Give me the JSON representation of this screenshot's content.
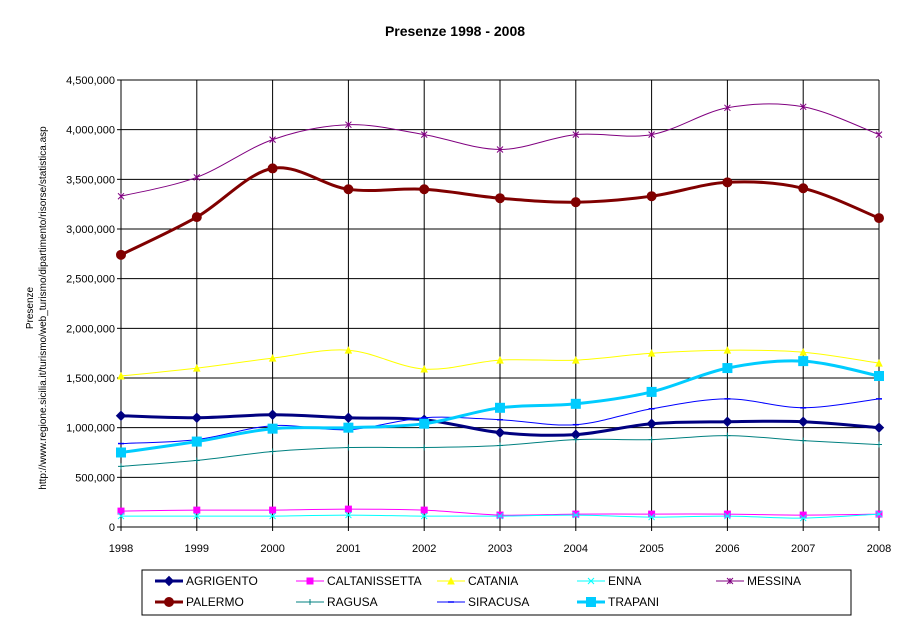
{
  "chart_data": {
    "type": "line",
    "title": "Presenze 1998 - 2008",
    "ylabel_line1": "Presenze",
    "ylabel_line2": "http://www.regione.sicilia.it/turismo/web_turismo/dipartimento/risorse/statistica.asp",
    "x": [
      "1998",
      "1999",
      "2000",
      "2001",
      "2002",
      "2003",
      "2004",
      "2005",
      "2006",
      "2007",
      "2008"
    ],
    "ylim": [
      0,
      4500000
    ],
    "yticks": [
      0,
      500000,
      1000000,
      1500000,
      2000000,
      2500000,
      3000000,
      3500000,
      4000000,
      4500000
    ],
    "ytick_labels": [
      "0",
      "500,000",
      "1,000,000",
      "1,500,000",
      "2,000,000",
      "2,500,000",
      "3,000,000",
      "3,500,000",
      "4,000,000",
      "4,500,000"
    ],
    "grid": "horizontal",
    "legend_position": "bottom",
    "series": [
      {
        "name": "AGRIGENTO",
        "color": "#000080",
        "marker": "diamond",
        "values": [
          1120000,
          1100000,
          1130000,
          1100000,
          1080000,
          950000,
          930000,
          1040000,
          1060000,
          1060000,
          1000000
        ]
      },
      {
        "name": "CALTANISSETTA",
        "color": "#ff00ff",
        "marker": "square",
        "values": [
          160000,
          170000,
          170000,
          180000,
          170000,
          120000,
          130000,
          130000,
          130000,
          120000,
          130000
        ]
      },
      {
        "name": "CATANIA",
        "color": "#ffff00",
        "marker": "triangle",
        "values": [
          1520000,
          1600000,
          1700000,
          1780000,
          1590000,
          1680000,
          1680000,
          1750000,
          1780000,
          1760000,
          1650000
        ]
      },
      {
        "name": "ENNA",
        "color": "#00ffff",
        "marker": "x",
        "values": [
          110000,
          110000,
          110000,
          120000,
          110000,
          110000,
          120000,
          100000,
          110000,
          90000,
          130000
        ]
      },
      {
        "name": "MESSINA",
        "color": "#800080",
        "marker": "star",
        "values": [
          3330000,
          3520000,
          3900000,
          4050000,
          3950000,
          3800000,
          3950000,
          3950000,
          4220000,
          4230000,
          3950000
        ]
      },
      {
        "name": "PALERMO",
        "color": "#800000",
        "marker": "circle",
        "values": [
          2740000,
          3120000,
          3610000,
          3400000,
          3400000,
          3310000,
          3270000,
          3330000,
          3470000,
          3410000,
          3110000
        ]
      },
      {
        "name": "RAGUSA",
        "color": "#008080",
        "marker": "plus",
        "values": [
          610000,
          670000,
          760000,
          800000,
          800000,
          820000,
          880000,
          880000,
          920000,
          870000,
          830000
        ]
      },
      {
        "name": "SIRACUSA",
        "color": "#0000ff",
        "marker": "dash",
        "values": [
          840000,
          880000,
          1020000,
          980000,
          1100000,
          1080000,
          1030000,
          1190000,
          1290000,
          1200000,
          1290000
        ]
      },
      {
        "name": "TRAPANI",
        "color": "#00ccff",
        "marker": "square",
        "values": [
          750000,
          860000,
          990000,
          1000000,
          1040000,
          1200000,
          1240000,
          1360000,
          1600000,
          1670000,
          1520000
        ]
      }
    ]
  }
}
